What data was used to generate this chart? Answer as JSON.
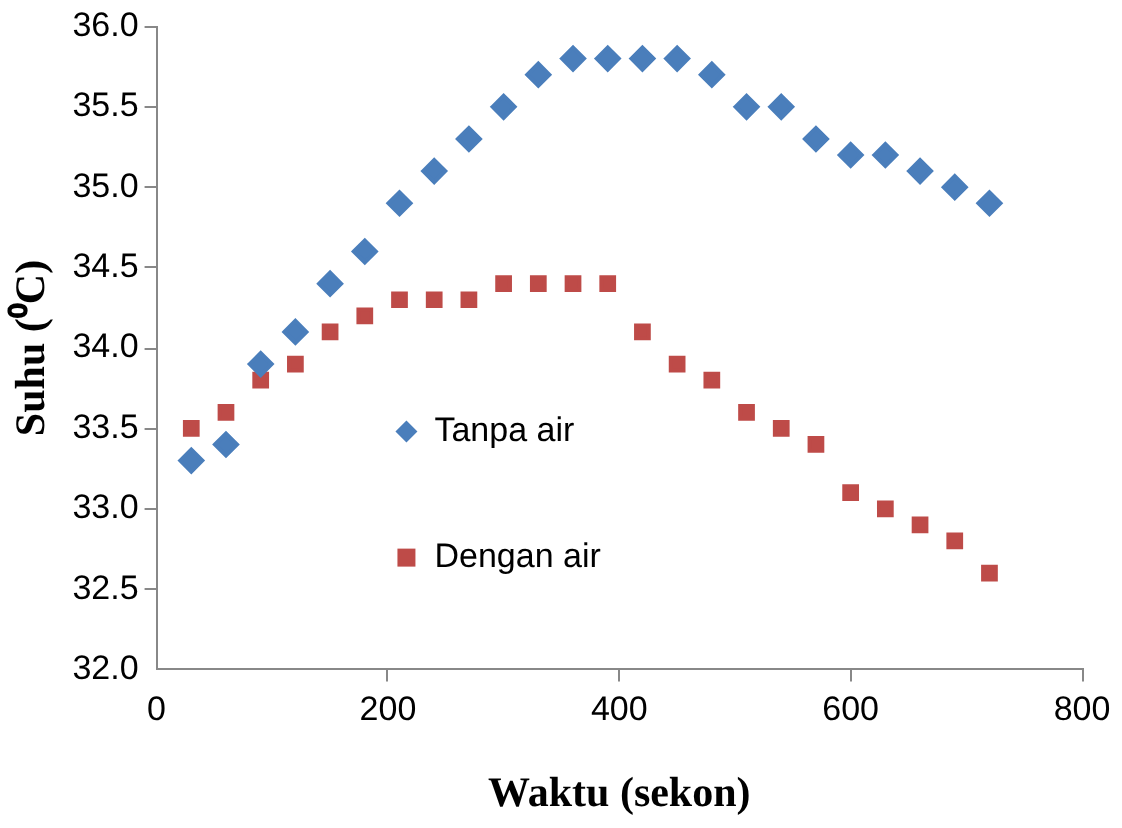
{
  "chart_data": {
    "type": "scatter",
    "xlabel": "Waktu (sekon)",
    "ylabel": "Suhu (⁰C)",
    "x": [
      30,
      60,
      90,
      120,
      150,
      180,
      210,
      240,
      270,
      300,
      330,
      360,
      390,
      420,
      450,
      480,
      510,
      540,
      570,
      600,
      630,
      660,
      690,
      720
    ],
    "series": [
      {
        "name": "Tanpa air",
        "color": "#4a7ebb",
        "marker": "diamond",
        "values": [
          33.3,
          33.4,
          33.9,
          34.1,
          34.4,
          34.6,
          34.9,
          35.1,
          35.3,
          35.5,
          35.7,
          35.8,
          35.8,
          35.8,
          35.8,
          35.7,
          35.5,
          35.5,
          35.3,
          35.2,
          35.2,
          35.1,
          35.0,
          34.9
        ]
      },
      {
        "name": "Dengan air",
        "color": "#be4b48",
        "marker": "square",
        "values": [
          33.5,
          33.6,
          33.8,
          33.9,
          34.1,
          34.2,
          34.3,
          34.3,
          34.3,
          34.4,
          34.4,
          34.4,
          34.4,
          34.1,
          33.9,
          33.8,
          33.6,
          33.5,
          33.4,
          33.1,
          33.0,
          32.9,
          32.8,
          32.6
        ]
      }
    ],
    "xlim": [
      0,
      800
    ],
    "xticks": [
      0,
      200,
      400,
      600,
      800
    ],
    "ylim": [
      32.0,
      36.0
    ],
    "yticks": [
      {
        "value": 32.0,
        "label": "32.0"
      },
      {
        "value": 32.5,
        "label": "32.5"
      },
      {
        "value": 33.0,
        "label": "33.0"
      },
      {
        "value": 33.5,
        "label": "33.5"
      },
      {
        "value": 34.0,
        "label": "34.0"
      },
      {
        "value": 34.5,
        "label": "34.5"
      },
      {
        "value": 35.0,
        "label": "35.0"
      },
      {
        "value": 35.5,
        "label": "35.5"
      },
      {
        "value": 36.0,
        "label": "36.0"
      }
    ],
    "grid": false,
    "legend": "center"
  }
}
